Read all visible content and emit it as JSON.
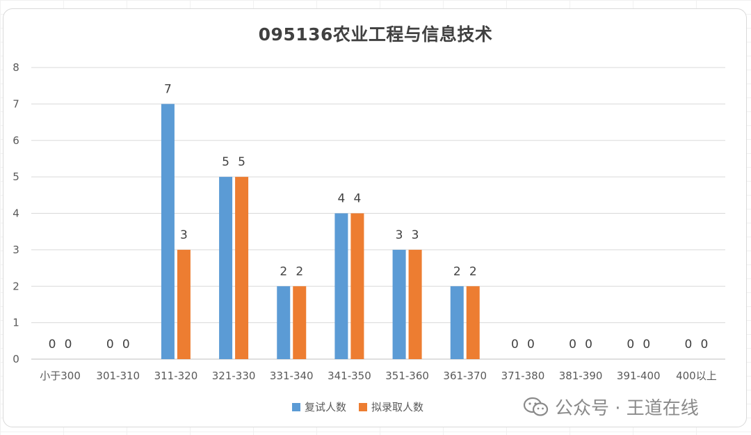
{
  "chart_data": {
    "type": "bar",
    "title": "095136农业工程与信息技术",
    "categories": [
      "小于300",
      "301-310",
      "311-320",
      "321-330",
      "331-340",
      "341-350",
      "351-360",
      "361-370",
      "371-380",
      "381-390",
      "391-400",
      "400以上"
    ],
    "series": [
      {
        "name": "复试人数",
        "color": "#5b9bd5",
        "values": [
          0,
          0,
          7,
          5,
          2,
          4,
          3,
          2,
          0,
          0,
          0,
          0
        ]
      },
      {
        "name": "拟录取人数",
        "color": "#ed7d31",
        "values": [
          0,
          0,
          3,
          5,
          2,
          4,
          3,
          2,
          0,
          0,
          0,
          0
        ]
      }
    ],
    "ylim": [
      0,
      8
    ],
    "yticks": [
      0,
      1,
      2,
      3,
      4,
      5,
      6,
      7,
      8
    ],
    "xlabel": "",
    "ylabel": "",
    "grid": true,
    "legend_position": "bottom"
  },
  "watermark": {
    "text": "公众号 · 王道在线",
    "icon": "wechat-icon"
  }
}
